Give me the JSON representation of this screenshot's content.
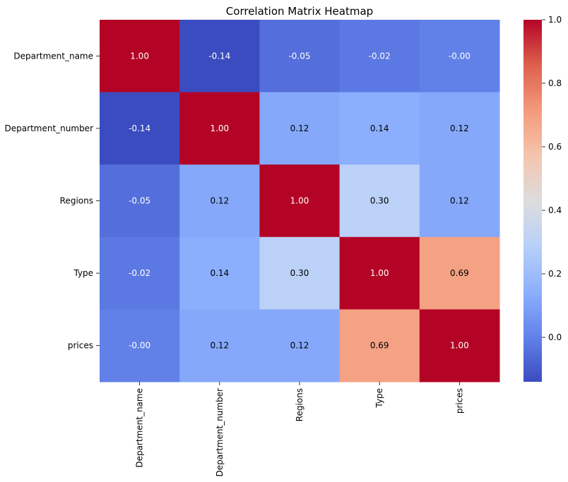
{
  "chart_data": {
    "type": "heatmap",
    "title": "Correlation Matrix Heatmap",
    "labels": [
      "Department_name",
      "Department_number",
      "Regions",
      "Type",
      "prices"
    ],
    "matrix": [
      [
        1.0,
        -0.14,
        -0.05,
        -0.02,
        -0.0
      ],
      [
        -0.14,
        1.0,
        0.12,
        0.14,
        0.12
      ],
      [
        -0.05,
        0.12,
        1.0,
        0.3,
        0.12
      ],
      [
        -0.02,
        0.14,
        0.3,
        1.0,
        0.69
      ],
      [
        -0.0,
        0.12,
        0.12,
        0.69,
        1.0
      ]
    ],
    "annotations": [
      [
        "1.00",
        "-0.14",
        "-0.05",
        "-0.02",
        "-0.00"
      ],
      [
        "-0.14",
        "1.00",
        "0.12",
        "0.14",
        "0.12"
      ],
      [
        "-0.05",
        "0.12",
        "1.00",
        "0.30",
        "0.12"
      ],
      [
        "-0.02",
        "0.14",
        "0.30",
        "1.00",
        "0.69"
      ],
      [
        "-0.00",
        "0.12",
        "0.12",
        "0.69",
        "1.00"
      ]
    ],
    "colormap": "coolwarm",
    "colorbar": {
      "range": [
        -0.14,
        1.0
      ],
      "ticks": [
        0.0,
        0.2,
        0.4,
        0.6,
        0.8,
        1.0
      ],
      "tick_labels": [
        "0.0",
        "0.2",
        "0.4",
        "0.6",
        "0.8",
        "1.0"
      ]
    }
  }
}
